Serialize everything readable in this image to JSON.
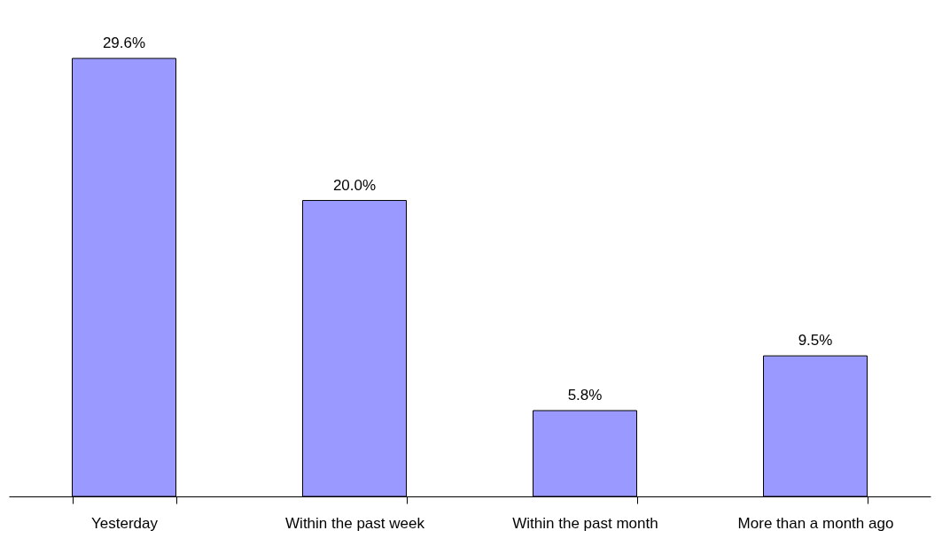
{
  "chart_data": {
    "type": "bar",
    "categories": [
      "Yesterday",
      "Within the past week",
      "Within the past month",
      "More than a month ago"
    ],
    "values": [
      29.6,
      20.0,
      5.8,
      9.5
    ],
    "value_labels": [
      "29.6%",
      "20.0%",
      "5.8%",
      "9.5%"
    ],
    "color": "#9999ff",
    "grid": false
  }
}
